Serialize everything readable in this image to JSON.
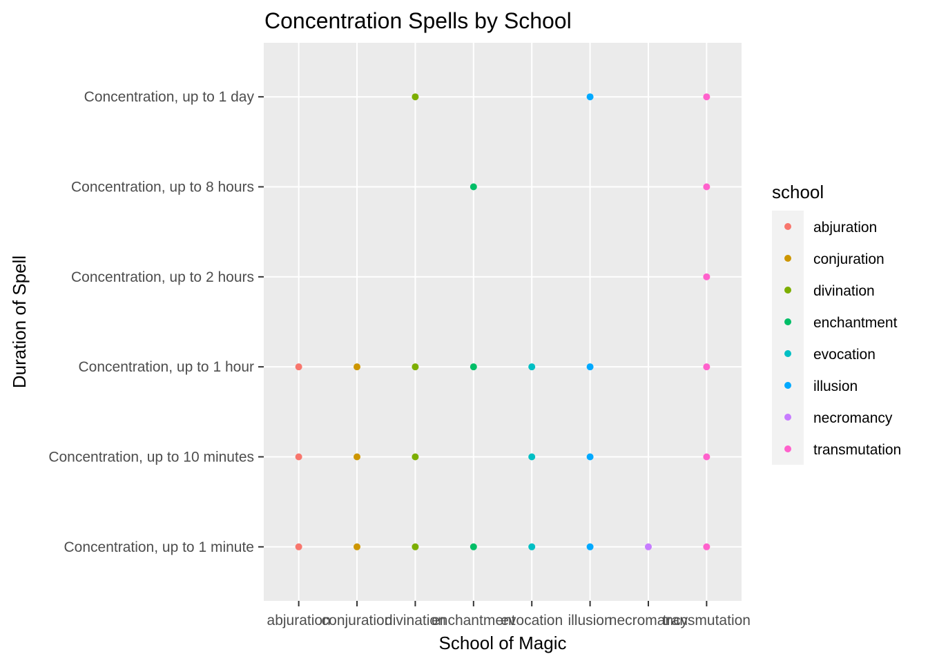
{
  "chart_data": {
    "type": "scatter",
    "title": "Concentration Spells by School",
    "xlabel": "School of Magic",
    "ylabel": "Duration of Spell",
    "x_categories": [
      "abjuration",
      "conjuration",
      "divination",
      "enchantment",
      "evocation",
      "illusion",
      "necromancy",
      "transmutation"
    ],
    "y_categories": [
      "Concentration, up to 1 minute",
      "Concentration, up to 10 minutes",
      "Concentration, up to 1 hour",
      "Concentration, up to 2 hours",
      "Concentration, up to 8 hours",
      "Concentration, up to 1 day"
    ],
    "grid": true,
    "legend": {
      "title": "school",
      "placement": "right",
      "entries": [
        {
          "name": "abjuration",
          "color": "#F8766D"
        },
        {
          "name": "conjuration",
          "color": "#CD9600"
        },
        {
          "name": "divination",
          "color": "#7CAE00"
        },
        {
          "name": "enchantment",
          "color": "#00BE67"
        },
        {
          "name": "evocation",
          "color": "#00BFC4"
        },
        {
          "name": "illusion",
          "color": "#00A9FF"
        },
        {
          "name": "necromancy",
          "color": "#C77CFF"
        },
        {
          "name": "transmutation",
          "color": "#FF61CC"
        }
      ]
    },
    "points": [
      {
        "x": "abjuration",
        "y": "Concentration, up to 1 minute"
      },
      {
        "x": "abjuration",
        "y": "Concentration, up to 10 minutes"
      },
      {
        "x": "abjuration",
        "y": "Concentration, up to 1 hour"
      },
      {
        "x": "conjuration",
        "y": "Concentration, up to 1 minute"
      },
      {
        "x": "conjuration",
        "y": "Concentration, up to 10 minutes"
      },
      {
        "x": "conjuration",
        "y": "Concentration, up to 1 hour"
      },
      {
        "x": "divination",
        "y": "Concentration, up to 1 minute"
      },
      {
        "x": "divination",
        "y": "Concentration, up to 10 minutes"
      },
      {
        "x": "divination",
        "y": "Concentration, up to 1 hour"
      },
      {
        "x": "divination",
        "y": "Concentration, up to 1 day"
      },
      {
        "x": "enchantment",
        "y": "Concentration, up to 1 minute"
      },
      {
        "x": "enchantment",
        "y": "Concentration, up to 1 hour"
      },
      {
        "x": "enchantment",
        "y": "Concentration, up to 8 hours"
      },
      {
        "x": "evocation",
        "y": "Concentration, up to 1 minute"
      },
      {
        "x": "evocation",
        "y": "Concentration, up to 10 minutes"
      },
      {
        "x": "evocation",
        "y": "Concentration, up to 1 hour"
      },
      {
        "x": "illusion",
        "y": "Concentration, up to 1 minute"
      },
      {
        "x": "illusion",
        "y": "Concentration, up to 10 minutes"
      },
      {
        "x": "illusion",
        "y": "Concentration, up to 1 hour"
      },
      {
        "x": "illusion",
        "y": "Concentration, up to 1 day"
      },
      {
        "x": "necromancy",
        "y": "Concentration, up to 1 minute"
      },
      {
        "x": "transmutation",
        "y": "Concentration, up to 1 minute"
      },
      {
        "x": "transmutation",
        "y": "Concentration, up to 10 minutes"
      },
      {
        "x": "transmutation",
        "y": "Concentration, up to 1 hour"
      },
      {
        "x": "transmutation",
        "y": "Concentration, up to 2 hours"
      },
      {
        "x": "transmutation",
        "y": "Concentration, up to 8 hours"
      },
      {
        "x": "transmutation",
        "y": "Concentration, up to 1 day"
      }
    ]
  }
}
